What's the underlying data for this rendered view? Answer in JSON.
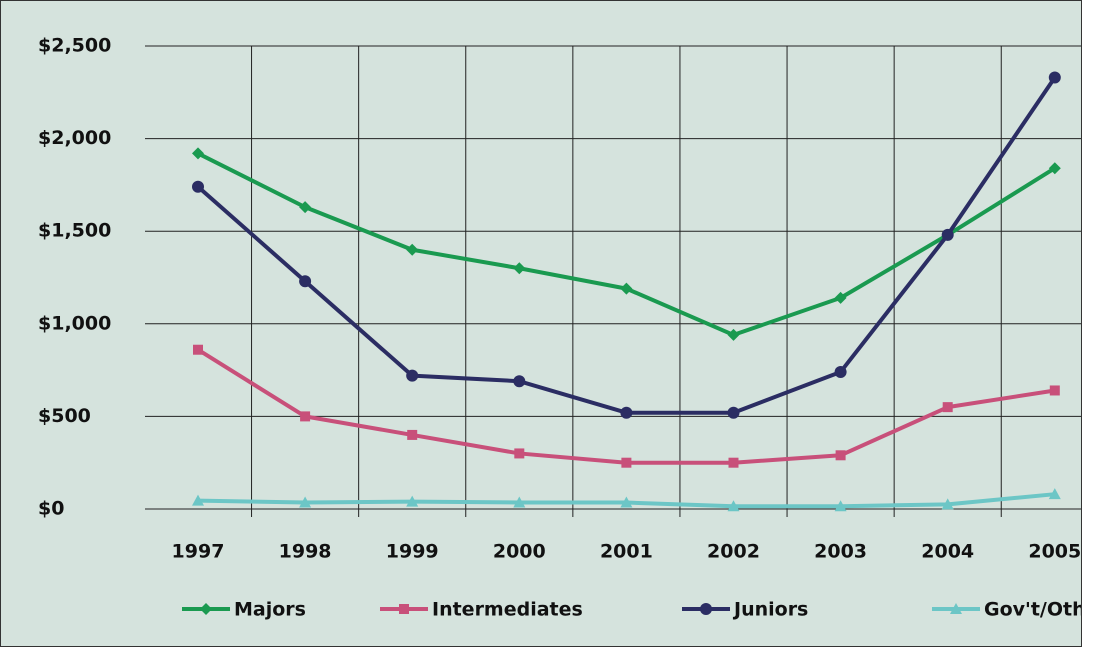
{
  "chart_data": {
    "type": "line",
    "categories": [
      "1997",
      "1998",
      "1999",
      "2000",
      "2001",
      "2002",
      "2003",
      "2004",
      "2005"
    ],
    "series": [
      {
        "name": "Majors",
        "color": "#1a9a50",
        "marker": "diamond",
        "values": [
          1920,
          1630,
          1400,
          1300,
          1190,
          940,
          1140,
          1480,
          1840
        ]
      },
      {
        "name": "Intermediates",
        "color": "#c8507a",
        "marker": "square",
        "values": [
          860,
          500,
          400,
          300,
          250,
          250,
          290,
          550,
          640
        ]
      },
      {
        "name": "Juniors",
        "color": "#2b2d63",
        "marker": "circle",
        "values": [
          1740,
          1230,
          720,
          690,
          520,
          520,
          740,
          1480,
          2330
        ]
      },
      {
        "name": "Gov't/Other",
        "color": "#6cc6c6",
        "marker": "triangle",
        "values": [
          45,
          35,
          40,
          35,
          35,
          15,
          15,
          25,
          80
        ]
      }
    ],
    "ylim": [
      0,
      2500
    ],
    "yticks": [
      {
        "value": 0,
        "label": "$0"
      },
      {
        "value": 500,
        "label": "$500"
      },
      {
        "value": 1000,
        "label": "$1,000"
      },
      {
        "value": 1500,
        "label": "$1,500"
      },
      {
        "value": 2000,
        "label": "$2,000"
      },
      {
        "value": 2500,
        "label": "$2,500"
      }
    ],
    "grid": true
  }
}
